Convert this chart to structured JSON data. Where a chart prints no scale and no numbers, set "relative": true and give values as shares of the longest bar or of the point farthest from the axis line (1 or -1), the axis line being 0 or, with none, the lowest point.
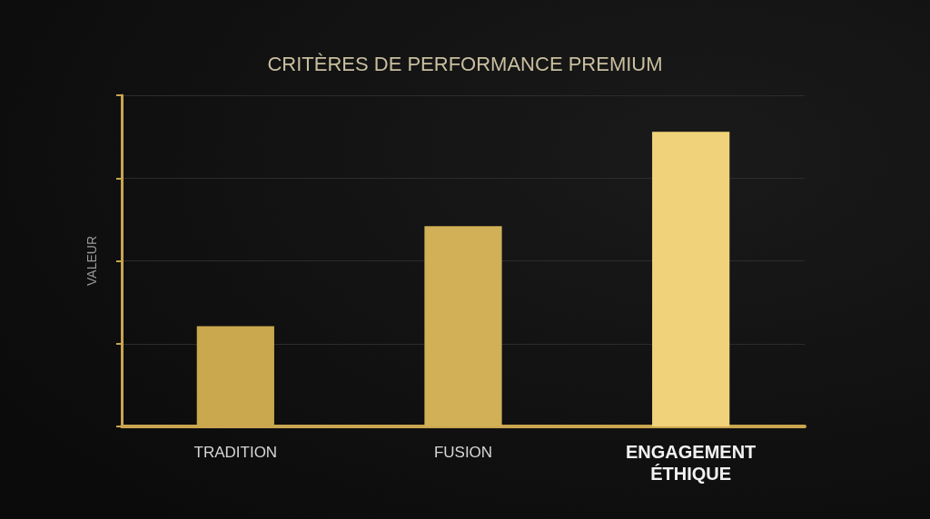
{
  "chart_data": {
    "type": "bar",
    "title": "CRITÈRES DE PERFORMANCE PREMIUM",
    "ylabel": "VALEUR",
    "categories": [
      "TRADITION",
      "FUSION",
      "ENGAGEMENT ÉTHIQUE"
    ],
    "values": [
      0.34,
      0.68,
      1
    ],
    "colors": [
      "#c9a84e",
      "#d1b058",
      "#f0d27a"
    ],
    "relative": true,
    "grid": "y"
  }
}
